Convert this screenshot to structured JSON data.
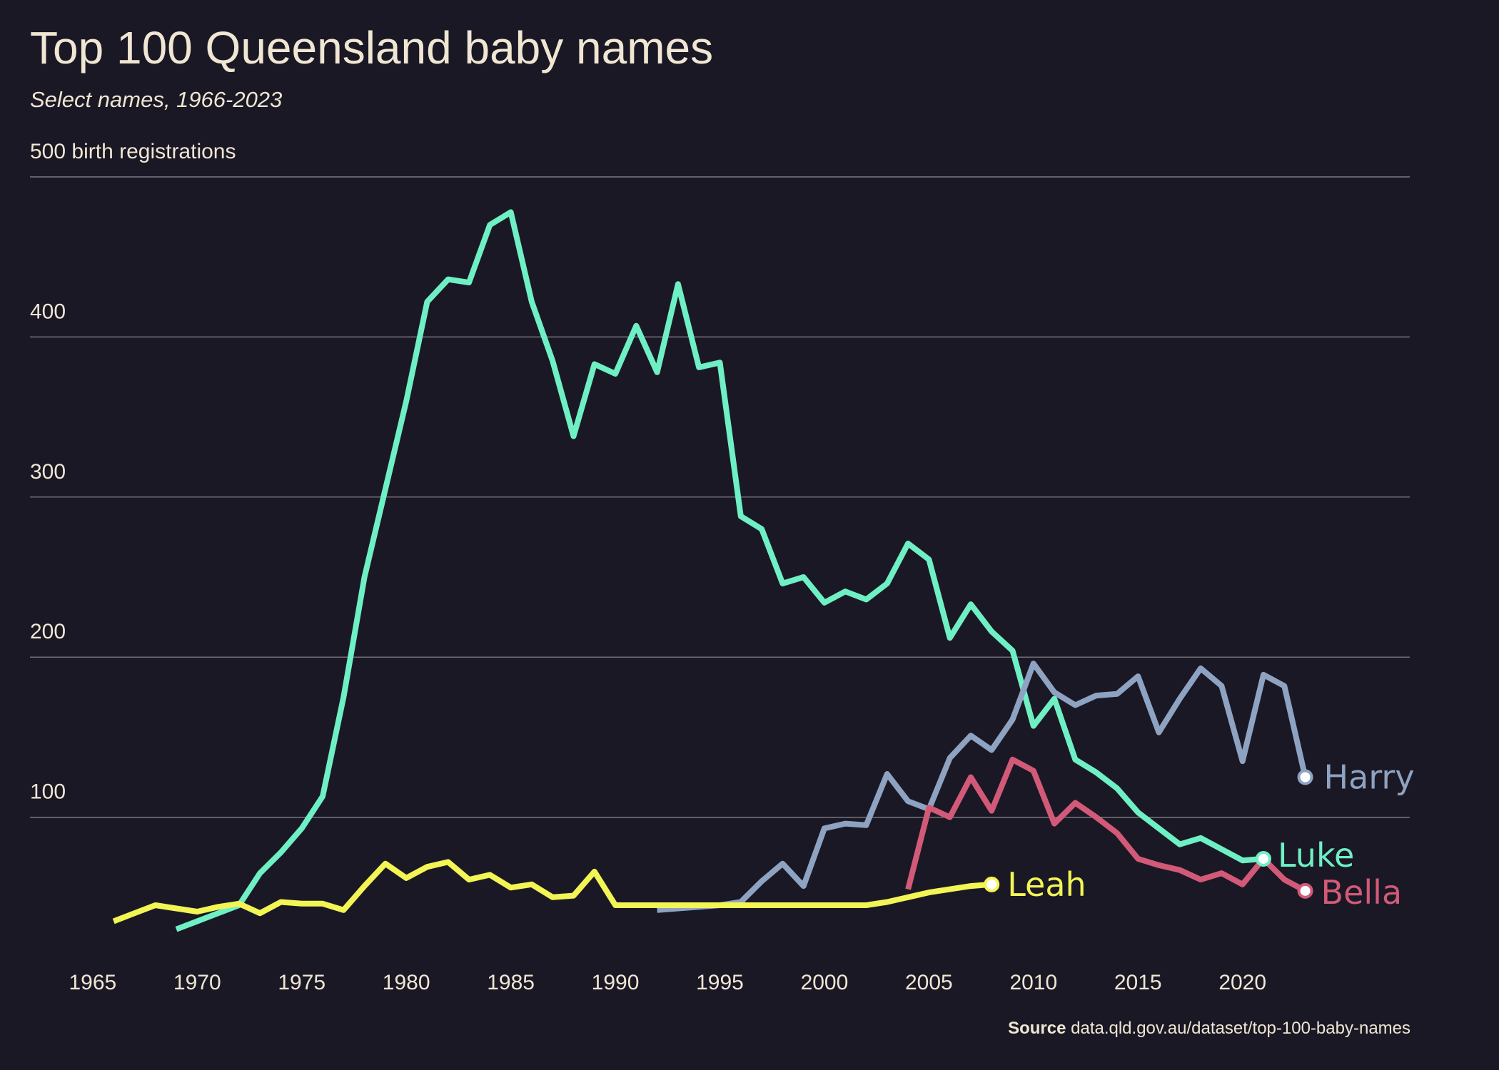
{
  "title": "Top 100 Queensland baby names",
  "subtitle": "Select names, 1966-2023",
  "source_label": "Source",
  "source_text": "data.qld.gov.au/dataset/top-100-baby-names",
  "colors": {
    "background": "#1b1825",
    "text": "#efe6d3",
    "grid": "#8c8a90",
    "Luke": "#6ef0c4",
    "Harry": "#8ea3c1",
    "Bella": "#d25a78",
    "Leah": "#f2f554"
  },
  "chart_data": {
    "type": "line",
    "xlabel": "",
    "ylabel": "birth registrations",
    "xlim": [
      1962,
      2028
    ],
    "ylim": [
      0,
      500
    ],
    "y_ticks": [
      100,
      200,
      300,
      400,
      500
    ],
    "y_tick_labels": [
      "100",
      "200",
      "300",
      "400",
      "500 birth registrations"
    ],
    "x_ticks": [
      1965,
      1970,
      1975,
      1980,
      1985,
      1990,
      1995,
      2000,
      2005,
      2010,
      2015,
      2020
    ],
    "x_tick_labels": [
      "1965",
      "1970",
      "1975",
      "1980",
      "1985",
      "1990",
      "1995",
      "2000",
      "2005",
      "2010",
      "2015",
      "2020"
    ],
    "grid": true,
    "legend": "direct labels at line ends",
    "series": [
      {
        "name": "Luke",
        "x": [
          1969,
          1970,
          1971,
          1972,
          1973,
          1974,
          1975,
          1976,
          1977,
          1978,
          1979,
          1980,
          1981,
          1982,
          1983,
          1984,
          1985,
          1986,
          1987,
          1988,
          1989,
          1990,
          1991,
          1992,
          1993,
          1994,
          1995,
          1996,
          1997,
          1998,
          1999,
          2000,
          2001,
          2002,
          2003,
          2004,
          2005,
          2006,
          2007,
          2008,
          2009,
          2010,
          2011,
          2012,
          2013,
          2014,
          2015,
          2016,
          2017,
          2018,
          2019,
          2020,
          2021
        ],
        "y": [
          30,
          35,
          40,
          45,
          65,
          78,
          93,
          113,
          175,
          250,
          305,
          360,
          422,
          436,
          434,
          470,
          478,
          422,
          385,
          338,
          383,
          377,
          407,
          378,
          433,
          381,
          384,
          288,
          280,
          246,
          250,
          234,
          241,
          236,
          246,
          271,
          261,
          212,
          233,
          216,
          204,
          157,
          174,
          136,
          128,
          118,
          103,
          93,
          83,
          87,
          80,
          73,
          74
        ]
      },
      {
        "name": "Harry",
        "x": [
          1992,
          1993,
          1994,
          1995,
          1996,
          1997,
          1998,
          1999,
          2000,
          2001,
          2002,
          2003,
          2004,
          2005,
          2006,
          2007,
          2008,
          2009,
          2010,
          2011,
          2012,
          2013,
          2014,
          2015,
          2016,
          2017,
          2018,
          2019,
          2020,
          2021,
          2022,
          2023
        ],
        "y": [
          42,
          43,
          44,
          45,
          47,
          60,
          71,
          57,
          93,
          96,
          95,
          127,
          110,
          105,
          137,
          151,
          142,
          161,
          196,
          178,
          170,
          176,
          177,
          188,
          153,
          174,
          193,
          182,
          135,
          189,
          182,
          125
        ]
      },
      {
        "name": "Bella",
        "x": [
          2004,
          2005,
          2006,
          2007,
          2008,
          2009,
          2010,
          2011,
          2012,
          2013,
          2014,
          2015,
          2016,
          2017,
          2018,
          2019,
          2020,
          2021,
          2022,
          2023
        ],
        "y": [
          55,
          106,
          100,
          125,
          104,
          136,
          129,
          96,
          109,
          100,
          90,
          74,
          70,
          67,
          61,
          65,
          58,
          74,
          61,
          54
        ]
      },
      {
        "name": "Leah",
        "x": [
          1966,
          1967,
          1968,
          1969,
          1970,
          1971,
          1972,
          1973,
          1974,
          1975,
          1976,
          1977,
          1978,
          1979,
          1980,
          1981,
          1982,
          1983,
          1984,
          1985,
          1986,
          1987,
          1988,
          1989,
          1990,
          1991,
          1992,
          1993,
          1994,
          1995,
          1996,
          1997,
          1998,
          1999,
          2000,
          2001,
          2002,
          2003,
          2004,
          2005,
          2006,
          2007,
          2008
        ],
        "y": [
          35,
          40,
          45,
          43,
          41,
          44,
          46,
          40,
          47,
          46,
          46,
          42,
          57,
          71,
          62,
          69,
          72,
          61,
          64,
          56,
          58,
          50,
          51,
          66,
          45,
          45,
          45,
          45,
          45,
          45,
          45,
          45,
          45,
          45,
          45,
          45,
          45,
          47,
          50,
          53,
          55,
          57,
          58
        ]
      }
    ]
  }
}
